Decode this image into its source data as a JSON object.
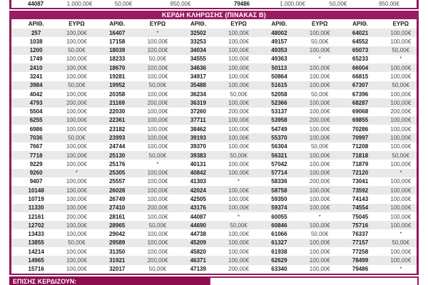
{
  "colors": {
    "brand": "#9B1B62",
    "border": "#8E1A57",
    "footer_bar": "#8E0C4D",
    "stripe": "#E9E9E9",
    "num": "#1A1A1A",
    "amt": "#4A4A4A"
  },
  "top_strip": {
    "cells": [
      {
        "text": "44087",
        "kind": "num"
      },
      {
        "text": "1.000,00€",
        "kind": "amt"
      },
      {
        "text": "50,00€",
        "kind": "amt"
      },
      {
        "text": "950,00€",
        "kind": "amt"
      },
      {
        "text": "79486",
        "kind": "num"
      },
      {
        "text": "1.000,00€",
        "kind": "amt"
      },
      {
        "text": "50,00€",
        "kind": "amt"
      },
      {
        "text": "950,00€",
        "kind": "amt"
      }
    ]
  },
  "banner": {
    "title": "ΚΕΡΔΗ ΚΛΗΡΩΣΗΣ (ΠΙΝΑΚΑΣ Β)"
  },
  "table": {
    "header_labels": {
      "number": "ΑΡΙΘ.",
      "amount": "ΕΥΡΩ"
    },
    "pairs": 5,
    "columns": [
      {
        "rows": [
          [
            "257",
            "100,00€"
          ],
          [
            "1038",
            "100,00€"
          ],
          [
            "1200",
            "50,00€"
          ],
          [
            "1749",
            "100,00€"
          ],
          [
            "2410",
            "100,00€"
          ],
          [
            "3241",
            "100,00€"
          ],
          [
            "3984",
            "50,00€"
          ],
          [
            "4042",
            "100,00€"
          ],
          [
            "4793",
            "200,00€"
          ],
          [
            "5504",
            "100,00€"
          ],
          [
            "6255",
            "100,00€"
          ],
          [
            "6986",
            "100,00€"
          ],
          [
            "7036",
            "50,00€"
          ],
          [
            "7667",
            "100,00€"
          ],
          [
            "7718",
            "100,00€"
          ],
          [
            "9229",
            "100,00€"
          ],
          [
            "9260",
            "*"
          ],
          [
            "9407",
            "100,00€"
          ],
          [
            "10148",
            "100,00€"
          ],
          [
            "10719",
            "100,00€"
          ],
          [
            "11330",
            "100,00€"
          ],
          [
            "12161",
            "200,00€"
          ],
          [
            "12702",
            "100,00€"
          ],
          [
            "13433",
            "100,00€"
          ],
          [
            "13855",
            "50,00€"
          ],
          [
            "14214",
            "100,00€"
          ],
          [
            "14965",
            "100,00€"
          ],
          [
            "15716",
            "100,00€"
          ]
        ]
      },
      {
        "rows": [
          [
            "16407",
            "*"
          ],
          [
            "17158",
            "100,00€"
          ],
          [
            "18039",
            "100,00€"
          ],
          [
            "18233",
            "50,00€"
          ],
          [
            "18670",
            "100,00€"
          ],
          [
            "19281",
            "100,00€"
          ],
          [
            "19952",
            "50,00€"
          ],
          [
            "20358",
            "100,00€"
          ],
          [
            "21169",
            "200,00€"
          ],
          [
            "22030",
            "100,00€"
          ],
          [
            "22361",
            "100,00€"
          ],
          [
            "23182",
            "100,00€"
          ],
          [
            "23993",
            "100,00€"
          ],
          [
            "24744",
            "100,00€"
          ],
          [
            "25130",
            "50,00€"
          ],
          [
            "25176",
            "*"
          ],
          [
            "25305",
            "100,00€"
          ],
          [
            "25557",
            "100,00€"
          ],
          [
            "26028",
            "100,00€"
          ],
          [
            "26749",
            "100,00€"
          ],
          [
            "27410",
            "200,00€"
          ],
          [
            "28161",
            "100,00€"
          ],
          [
            "28965",
            "50,00€"
          ],
          [
            "29042",
            "100,00€"
          ],
          [
            "29589",
            "100,00€"
          ],
          [
            "31350",
            "100,00€"
          ],
          [
            "31921",
            "200,00€"
          ],
          [
            "32017",
            "50,00€"
          ]
        ]
      },
      {
        "rows": [
          [
            "32502",
            "100,00€"
          ],
          [
            "33253",
            "100,00€"
          ],
          [
            "34034",
            "100,00€"
          ],
          [
            "34555",
            "100,00€"
          ],
          [
            "34636",
            "100,00€"
          ],
          [
            "34917",
            "100,00€"
          ],
          [
            "35488",
            "100,00€"
          ],
          [
            "36234",
            "50,00€"
          ],
          [
            "36319",
            "100,00€"
          ],
          [
            "37260",
            "200,00€"
          ],
          [
            "37711",
            "100,00€"
          ],
          [
            "38462",
            "100,00€"
          ],
          [
            "39193",
            "100,00€"
          ],
          [
            "39370",
            "100,00€"
          ],
          [
            "39383",
            "50,00€"
          ],
          [
            "40131",
            "100,00€"
          ],
          [
            "40842",
            "100,00€"
          ],
          [
            "41303",
            "*"
          ],
          [
            "42024",
            "100,00€"
          ],
          [
            "42505",
            "100,00€"
          ],
          [
            "43176",
            "100,00€"
          ],
          [
            "44087",
            "*"
          ],
          [
            "44690",
            "50,00€"
          ],
          [
            "44738",
            "100,00€"
          ],
          [
            "45209",
            "100,00€"
          ],
          [
            "45820",
            "100,00€"
          ],
          [
            "46371",
            "100,00€"
          ],
          [
            "47139",
            "200,00€"
          ]
        ]
      },
      {
        "rows": [
          [
            "48002",
            "100,00€"
          ],
          [
            "49157",
            "50,00€"
          ],
          [
            "49353",
            "100,00€"
          ],
          [
            "49363",
            "*"
          ],
          [
            "50113",
            "100,00€"
          ],
          [
            "50864",
            "100,00€"
          ],
          [
            "51615",
            "100,00€"
          ],
          [
            "52058",
            "50,00€"
          ],
          [
            "52366",
            "100,00€"
          ],
          [
            "53137",
            "100,00€"
          ],
          [
            "53958",
            "200,00€"
          ],
          [
            "54749",
            "100,00€"
          ],
          [
            "55370",
            "100,00€"
          ],
          [
            "56304",
            "50,00€"
          ],
          [
            "56321",
            "100,00€"
          ],
          [
            "57042",
            "100,00€"
          ],
          [
            "57714",
            "100,00€"
          ],
          [
            "58336",
            "200,00€"
          ],
          [
            "58758",
            "100,00€"
          ],
          [
            "59350",
            "100,00€"
          ],
          [
            "59374",
            "100,00€"
          ],
          [
            "60055",
            "*"
          ],
          [
            "60846",
            "100,00€"
          ],
          [
            "61066",
            "50,00€"
          ],
          [
            "61327",
            "100,00€"
          ],
          [
            "61938",
            "100,00€"
          ],
          [
            "62629",
            "100,00€"
          ],
          [
            "63340",
            "100,00€"
          ]
        ]
      },
      {
        "rows": [
          [
            "64021",
            "100,00€"
          ],
          [
            "64552",
            "100,00€"
          ],
          [
            "65073",
            "50,00€"
          ],
          [
            "65233",
            "*"
          ],
          [
            "66004",
            "100,00€"
          ],
          [
            "66815",
            "100,00€"
          ],
          [
            "67307",
            "50,00€"
          ],
          [
            "67396",
            "100,00€"
          ],
          [
            "68287",
            "100,00€"
          ],
          [
            "69068",
            "200,00€"
          ],
          [
            "69855",
            "100,00€"
          ],
          [
            "70286",
            "100,00€"
          ],
          [
            "70997",
            "100,00€"
          ],
          [
            "71208",
            "100,00€"
          ],
          [
            "71818",
            "50,00€"
          ],
          [
            "71879",
            "100,00€"
          ],
          [
            "72120",
            "*"
          ],
          [
            "73041",
            "100,00€"
          ],
          [
            "73592",
            "100,00€"
          ],
          [
            "74143",
            "100,00€"
          ],
          [
            "74554",
            "100,00€"
          ],
          [
            "75045",
            "100,00€"
          ],
          [
            "75716",
            "100,00€"
          ],
          [
            "76337",
            "*"
          ],
          [
            "77157",
            "50,00€"
          ],
          [
            "77258",
            "100,00€"
          ],
          [
            "78499",
            "100,00€"
          ],
          [
            "79486",
            "*"
          ]
        ]
      }
    ]
  },
  "footer": {
    "label": "ΕΠΙΣΗΣ ΚΕΡΔΙΖΟΥΝ:"
  }
}
